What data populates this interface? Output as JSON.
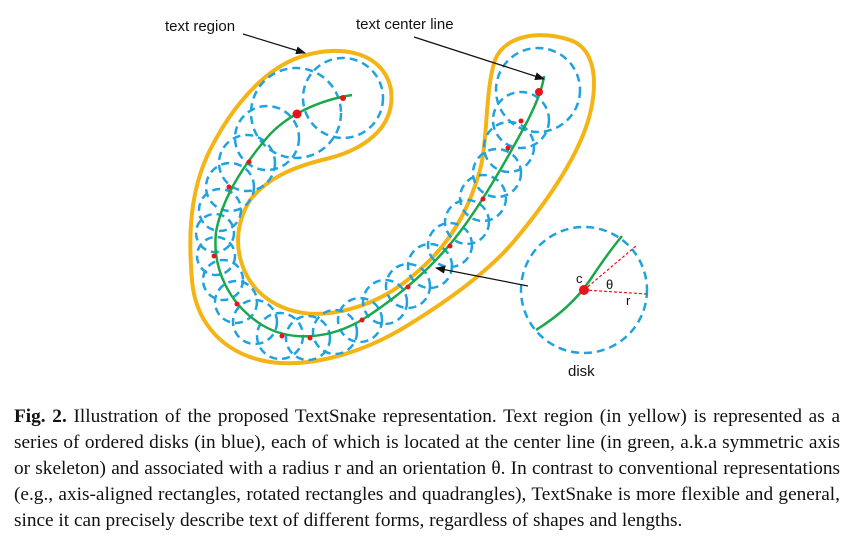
{
  "figure": {
    "labels": {
      "text_region": "text region",
      "text_center_line": "text center line",
      "disk": "disk",
      "center": "c",
      "angle": "θ",
      "radius": "r"
    },
    "colors": {
      "text_region": "#f5b415",
      "disks": "#1ea2e0",
      "center_line": "#1aa84a",
      "points": "#e8141c",
      "arrows": "#111111"
    }
  },
  "caption": {
    "label": "Fig. 2.",
    "text": " Illustration of the proposed TextSnake representation. Text region (in yellow) is represented as a series of ordered disks (in blue), each of which is located at the center line (in green, a.k.a symmetric axis or skeleton) and associated with a radius r and an orientation θ. In contrast to conventional representations (e.g., axis-aligned rectangles, rotated rectangles and quadrangles), TextSnake is more flexible and general, since it can precisely describe text of different forms, regardless of shapes and lengths."
  }
}
